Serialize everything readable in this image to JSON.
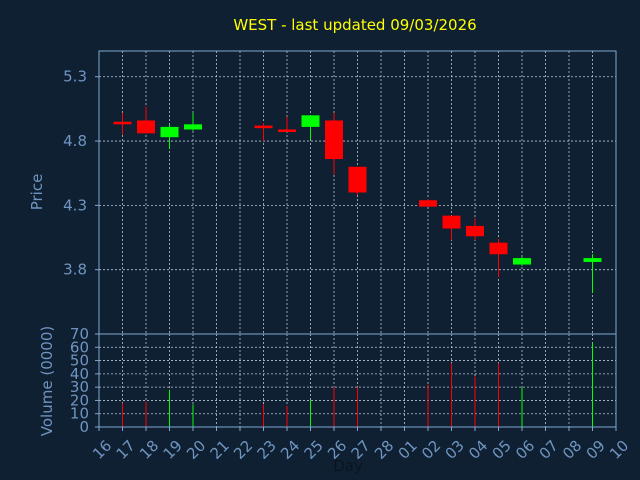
{
  "chart_data": {
    "type": "candlestick",
    "title": "WEST - last updated 09/03/2026",
    "ylabel": "Price",
    "volume_label": "Volume (0000)",
    "xlabel": "Day",
    "price_ylim": [
      3.3,
      5.5
    ],
    "price_ticks": [
      5.3,
      4.8,
      4.3,
      3.8
    ],
    "volume_ylim": [
      0,
      70
    ],
    "volume_ticks": [
      0,
      10,
      20,
      30,
      40,
      50,
      60,
      70
    ],
    "grid": true,
    "colors": {
      "up": "#00ff00",
      "down": "#ff0000",
      "title": "#ffff00",
      "axis": "#6f95c0",
      "background": "#0f2033"
    },
    "x_labels": [
      "16",
      "17",
      "18",
      "19",
      "20",
      "21",
      "22",
      "23",
      "24",
      "25",
      "26",
      "27",
      "28",
      "01",
      "02",
      "03",
      "04",
      "05",
      "06",
      "07",
      "08",
      "09",
      "10"
    ],
    "candles": [
      {
        "x": "17",
        "open": 4.95,
        "high": 5.02,
        "low": 4.85,
        "close": 4.93,
        "volume": 18
      },
      {
        "x": "18",
        "open": 4.96,
        "high": 5.07,
        "low": 4.86,
        "close": 4.86,
        "volume": 19
      },
      {
        "x": "19",
        "open": 4.83,
        "high": 4.93,
        "low": 4.74,
        "close": 4.91,
        "volume": 28
      },
      {
        "x": "20",
        "open": 4.89,
        "high": 5.02,
        "low": 4.88,
        "close": 4.93,
        "volume": 17
      },
      {
        "x": "23",
        "open": 4.92,
        "high": 4.94,
        "low": 4.8,
        "close": 4.9,
        "volume": 17
      },
      {
        "x": "24",
        "open": 4.89,
        "high": 4.99,
        "low": 4.87,
        "close": 4.87,
        "volume": 16
      },
      {
        "x": "25",
        "open": 4.91,
        "high": 4.99,
        "low": 4.81,
        "close": 5.0,
        "volume": 20
      },
      {
        "x": "26",
        "open": 4.96,
        "high": 5.02,
        "low": 4.54,
        "close": 4.66,
        "volume": 30
      },
      {
        "x": "27",
        "open": 4.6,
        "high": 4.6,
        "low": 4.38,
        "close": 4.4,
        "volume": 30
      },
      {
        "x": "02",
        "open": 4.34,
        "high": 4.35,
        "low": 4.29,
        "close": 4.29,
        "volume": 32
      },
      {
        "x": "03",
        "open": 4.22,
        "high": 4.22,
        "low": 4.03,
        "close": 4.12,
        "volume": 48
      },
      {
        "x": "04",
        "open": 4.14,
        "high": 4.2,
        "low": 4.03,
        "close": 4.06,
        "volume": 38
      },
      {
        "x": "05",
        "open": 4.01,
        "high": 4.04,
        "low": 3.74,
        "close": 3.92,
        "volume": 48
      },
      {
        "x": "06",
        "open": 3.84,
        "high": 3.9,
        "low": 3.83,
        "close": 3.89,
        "volume": 30
      },
      {
        "x": "09",
        "open": 3.86,
        "high": 3.92,
        "low": 3.62,
        "close": 3.89,
        "volume": 63
      }
    ]
  }
}
